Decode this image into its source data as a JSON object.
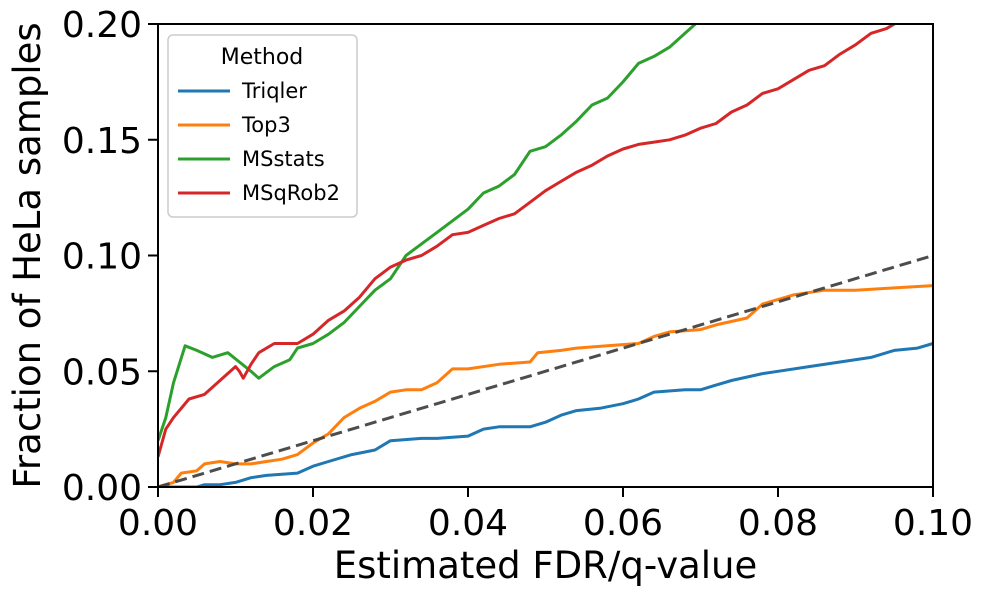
{
  "chart_data": {
    "type": "line",
    "xlabel": "Estimated FDR/q-value",
    "ylabel": "Fraction of HeLa samples",
    "xlim": [
      0.0,
      0.1
    ],
    "ylim": [
      0.0,
      0.2
    ],
    "xticks": [
      "0.00",
      "0.02",
      "0.04",
      "0.06",
      "0.08",
      "0.10"
    ],
    "yticks": [
      "0.00",
      "0.05",
      "0.10",
      "0.15",
      "0.20"
    ],
    "grid": false,
    "legend": {
      "title": "Method",
      "position": "top-left"
    },
    "series": [
      {
        "name": "Triqler",
        "color": "#1f77b4",
        "points": [
          [
            0.0,
            0.0
          ],
          [
            0.005,
            0.0
          ],
          [
            0.006,
            0.001
          ],
          [
            0.008,
            0.001
          ],
          [
            0.01,
            0.002
          ],
          [
            0.012,
            0.004
          ],
          [
            0.014,
            0.005
          ],
          [
            0.018,
            0.006
          ],
          [
            0.02,
            0.009
          ],
          [
            0.022,
            0.011
          ],
          [
            0.025,
            0.014
          ],
          [
            0.028,
            0.016
          ],
          [
            0.03,
            0.02
          ],
          [
            0.034,
            0.021
          ],
          [
            0.036,
            0.021
          ],
          [
            0.04,
            0.022
          ],
          [
            0.042,
            0.025
          ],
          [
            0.044,
            0.026
          ],
          [
            0.048,
            0.026
          ],
          [
            0.05,
            0.028
          ],
          [
            0.052,
            0.031
          ],
          [
            0.054,
            0.033
          ],
          [
            0.057,
            0.034
          ],
          [
            0.06,
            0.036
          ],
          [
            0.062,
            0.038
          ],
          [
            0.064,
            0.041
          ],
          [
            0.068,
            0.042
          ],
          [
            0.07,
            0.042
          ],
          [
            0.072,
            0.044
          ],
          [
            0.074,
            0.046
          ],
          [
            0.078,
            0.049
          ],
          [
            0.08,
            0.05
          ],
          [
            0.084,
            0.052
          ],
          [
            0.088,
            0.054
          ],
          [
            0.092,
            0.056
          ],
          [
            0.095,
            0.059
          ],
          [
            0.098,
            0.06
          ],
          [
            0.1,
            0.062
          ]
        ]
      },
      {
        "name": "Top3",
        "color": "#ff7f0e",
        "points": [
          [
            0.0,
            0.0
          ],
          [
            0.002,
            0.002
          ],
          [
            0.003,
            0.006
          ],
          [
            0.005,
            0.007
          ],
          [
            0.006,
            0.01
          ],
          [
            0.008,
            0.011
          ],
          [
            0.01,
            0.01
          ],
          [
            0.012,
            0.01
          ],
          [
            0.014,
            0.011
          ],
          [
            0.016,
            0.012
          ],
          [
            0.018,
            0.014
          ],
          [
            0.02,
            0.019
          ],
          [
            0.022,
            0.023
          ],
          [
            0.024,
            0.03
          ],
          [
            0.026,
            0.034
          ],
          [
            0.028,
            0.037
          ],
          [
            0.03,
            0.041
          ],
          [
            0.032,
            0.042
          ],
          [
            0.034,
            0.042
          ],
          [
            0.036,
            0.045
          ],
          [
            0.038,
            0.051
          ],
          [
            0.04,
            0.051
          ],
          [
            0.044,
            0.053
          ],
          [
            0.048,
            0.054
          ],
          [
            0.049,
            0.058
          ],
          [
            0.052,
            0.059
          ],
          [
            0.054,
            0.06
          ],
          [
            0.058,
            0.061
          ],
          [
            0.062,
            0.062
          ],
          [
            0.064,
            0.065
          ],
          [
            0.066,
            0.067
          ],
          [
            0.07,
            0.068
          ],
          [
            0.072,
            0.07
          ],
          [
            0.076,
            0.073
          ],
          [
            0.078,
            0.079
          ],
          [
            0.082,
            0.083
          ],
          [
            0.086,
            0.085
          ],
          [
            0.09,
            0.085
          ],
          [
            0.095,
            0.086
          ],
          [
            0.1,
            0.087
          ]
        ]
      },
      {
        "name": "MSstats",
        "color": "#2ca02c",
        "points": [
          [
            0.0,
            0.02
          ],
          [
            0.001,
            0.03
          ],
          [
            0.002,
            0.045
          ],
          [
            0.0035,
            0.061
          ],
          [
            0.005,
            0.059
          ],
          [
            0.007,
            0.056
          ],
          [
            0.009,
            0.058
          ],
          [
            0.0105,
            0.054
          ],
          [
            0.012,
            0.05
          ],
          [
            0.013,
            0.047
          ],
          [
            0.015,
            0.052
          ],
          [
            0.017,
            0.055
          ],
          [
            0.018,
            0.06
          ],
          [
            0.02,
            0.062
          ],
          [
            0.022,
            0.066
          ],
          [
            0.024,
            0.071
          ],
          [
            0.026,
            0.078
          ],
          [
            0.028,
            0.085
          ],
          [
            0.03,
            0.09
          ],
          [
            0.032,
            0.1
          ],
          [
            0.034,
            0.105
          ],
          [
            0.036,
            0.11
          ],
          [
            0.038,
            0.115
          ],
          [
            0.04,
            0.12
          ],
          [
            0.042,
            0.127
          ],
          [
            0.044,
            0.13
          ],
          [
            0.046,
            0.135
          ],
          [
            0.048,
            0.145
          ],
          [
            0.05,
            0.147
          ],
          [
            0.052,
            0.152
          ],
          [
            0.054,
            0.158
          ],
          [
            0.056,
            0.165
          ],
          [
            0.058,
            0.168
          ],
          [
            0.06,
            0.175
          ],
          [
            0.062,
            0.183
          ],
          [
            0.064,
            0.186
          ],
          [
            0.066,
            0.19
          ],
          [
            0.068,
            0.196
          ],
          [
            0.07,
            0.202
          ]
        ]
      },
      {
        "name": "MSqRob2",
        "color": "#d62728",
        "points": [
          [
            0.0,
            0.013
          ],
          [
            0.001,
            0.025
          ],
          [
            0.002,
            0.03
          ],
          [
            0.004,
            0.038
          ],
          [
            0.006,
            0.04
          ],
          [
            0.008,
            0.046
          ],
          [
            0.01,
            0.052
          ],
          [
            0.0105,
            0.05
          ],
          [
            0.011,
            0.047
          ],
          [
            0.012,
            0.053
          ],
          [
            0.013,
            0.058
          ],
          [
            0.015,
            0.062
          ],
          [
            0.018,
            0.062
          ],
          [
            0.02,
            0.066
          ],
          [
            0.022,
            0.072
          ],
          [
            0.024,
            0.076
          ],
          [
            0.026,
            0.082
          ],
          [
            0.028,
            0.09
          ],
          [
            0.03,
            0.095
          ],
          [
            0.032,
            0.098
          ],
          [
            0.034,
            0.1
          ],
          [
            0.036,
            0.104
          ],
          [
            0.038,
            0.109
          ],
          [
            0.04,
            0.11
          ],
          [
            0.042,
            0.113
          ],
          [
            0.044,
            0.116
          ],
          [
            0.046,
            0.118
          ],
          [
            0.048,
            0.123
          ],
          [
            0.05,
            0.128
          ],
          [
            0.052,
            0.132
          ],
          [
            0.054,
            0.136
          ],
          [
            0.056,
            0.139
          ],
          [
            0.058,
            0.143
          ],
          [
            0.06,
            0.146
          ],
          [
            0.062,
            0.148
          ],
          [
            0.064,
            0.149
          ],
          [
            0.066,
            0.15
          ],
          [
            0.068,
            0.152
          ],
          [
            0.07,
            0.155
          ],
          [
            0.072,
            0.157
          ],
          [
            0.074,
            0.162
          ],
          [
            0.076,
            0.165
          ],
          [
            0.078,
            0.17
          ],
          [
            0.08,
            0.172
          ],
          [
            0.082,
            0.176
          ],
          [
            0.084,
            0.18
          ],
          [
            0.086,
            0.182
          ],
          [
            0.088,
            0.187
          ],
          [
            0.09,
            0.191
          ],
          [
            0.092,
            0.196
          ],
          [
            0.094,
            0.198
          ],
          [
            0.096,
            0.202
          ]
        ]
      }
    ],
    "reference_line": {
      "style": "dashed",
      "color": "#444444",
      "points": [
        [
          0.0,
          0.0
        ],
        [
          0.1,
          0.1
        ]
      ]
    }
  }
}
